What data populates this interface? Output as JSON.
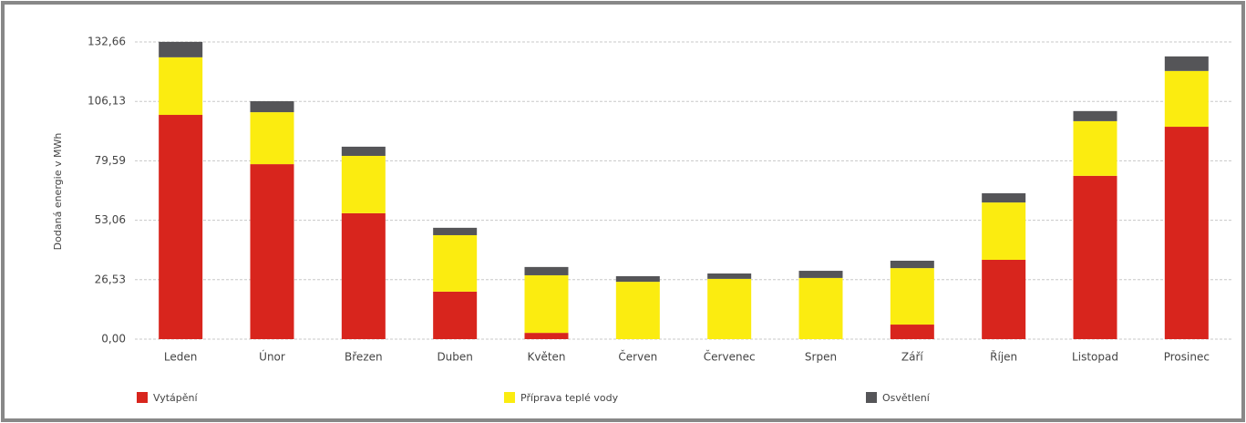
{
  "chart_data": {
    "type": "stacked_bar",
    "ylabel": "Dodaná energie v MWh",
    "categories": [
      "Leden",
      "Únor",
      "Březen",
      "Duben",
      "Květen",
      "Červen",
      "Červenec",
      "Srpen",
      "Září",
      "Říjen",
      "Listopad",
      "Prosinec"
    ],
    "series": [
      {
        "name": "Vytápění",
        "color": "#d8251d",
        "values": [
          100.1,
          78.1,
          56.2,
          21.2,
          2.8,
          0,
          0,
          0,
          6.5,
          35.4,
          72.9,
          94.8
        ]
      },
      {
        "name": "Příprava teplé vody",
        "color": "#fbec10",
        "values": [
          25.7,
          23.2,
          25.6,
          25.2,
          25.7,
          25.6,
          26.9,
          27.3,
          25.2,
          25.6,
          24.4,
          24.9
        ]
      },
      {
        "name": "Osvětlení",
        "color": "#555558",
        "values": [
          6.9,
          4.9,
          4.1,
          3.3,
          3.7,
          2.5,
          2.4,
          3.2,
          3.3,
          4.1,
          4.5,
          6.5
        ]
      }
    ],
    "ylim": [
      0,
      132.66
    ],
    "yticks": [
      {
        "value": 0,
        "label": "0,00"
      },
      {
        "value": 26.53,
        "label": "26,53"
      },
      {
        "value": 53.06,
        "label": "53,06"
      },
      {
        "value": 79.59,
        "label": "79,59"
      },
      {
        "value": 106.13,
        "label": "106,13"
      },
      {
        "value": 132.66,
        "label": "132,66"
      }
    ],
    "grid": true,
    "legend": "bottom"
  }
}
